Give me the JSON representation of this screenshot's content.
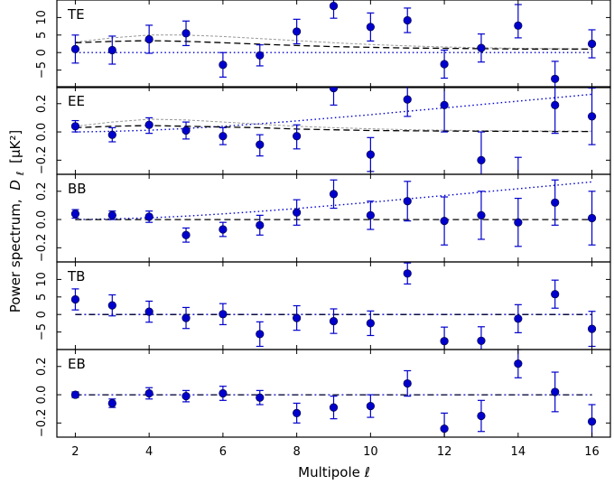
{
  "chart_data": {
    "type": "scatter",
    "xlabel": "Multipole ℓ",
    "ylabel_prefix": "Power spectrum,",
    "ylabel_symbol": "D",
    "ylabel_sub": "ℓ",
    "ylabel_unit": "[μK²]",
    "xlim": [
      1.5,
      16.5
    ],
    "xticks": [
      2,
      4,
      6,
      8,
      10,
      12,
      14,
      16
    ],
    "x": [
      2,
      3,
      4,
      5,
      6,
      7,
      8,
      9,
      10,
      11,
      12,
      13,
      14,
      15,
      16
    ],
    "marker_color": "#0000cc",
    "panels": [
      {
        "label": "TE",
        "ylim": [
          -10,
          15
        ],
        "yticks": [
          -5,
          0,
          5,
          10
        ],
        "ytick_labels": [
          "−5",
          "0",
          "5",
          "10"
        ],
        "values": [
          1.0,
          0.7,
          3.8,
          5.5,
          -3.5,
          -0.8,
          6.0,
          13.3,
          7.3,
          9.2,
          -3.3,
          1.3,
          7.7,
          -7.5,
          2.5
        ],
        "err_low": [
          4,
          4,
          4,
          3.5,
          3.5,
          3,
          3.5,
          3.5,
          4,
          3.5,
          4,
          4,
          3.5,
          4,
          4
        ],
        "err_high": [
          4,
          4,
          4,
          3.5,
          3.5,
          3,
          3.5,
          3.5,
          4,
          3.5,
          4,
          4,
          6,
          5,
          4
        ],
        "model_dashed": [
          2.8,
          3.2,
          3.4,
          3.2,
          2.8,
          2.4,
          2.0,
          1.7,
          1.5,
          1.3,
          1.2,
          1.1,
          1.0,
          1.0,
          1.0
        ],
        "model_dotted": [
          0.0,
          0.0,
          0.0,
          0.0,
          0.0,
          0.0,
          0.0,
          0.0,
          0.0,
          0.0,
          0.0,
          0.0,
          0.0,
          0.0,
          0.0
        ],
        "model_gray": [
          3.0,
          4.2,
          5.0,
          5.0,
          4.6,
          4.0,
          3.4,
          2.8,
          2.3,
          1.9,
          1.6,
          1.4,
          1.2,
          1.1,
          1.0
        ]
      },
      {
        "label": "EE",
        "ylim": [
          -0.3,
          0.32
        ],
        "yticks": [
          -0.2,
          0.0,
          0.2
        ],
        "ytick_labels": [
          "−0.2",
          "0.0",
          "0.2"
        ],
        "values": [
          0.04,
          -0.02,
          0.05,
          0.01,
          -0.03,
          -0.09,
          -0.03,
          0.31,
          -0.16,
          0.23,
          0.19,
          -0.2,
          -0.36,
          0.19,
          0.11
        ],
        "err_low": [
          0.04,
          0.05,
          0.06,
          0.06,
          0.06,
          0.08,
          0.09,
          0.12,
          0.12,
          0.12,
          0.19,
          0.2,
          0.18,
          0.2,
          0.2
        ],
        "err_high": [
          0.04,
          0.05,
          0.05,
          0.06,
          0.06,
          0.07,
          0.08,
          0.12,
          0.12,
          0.12,
          0.19,
          0.2,
          0.18,
          0.2,
          0.2
        ],
        "model_dashed": [
          0.03,
          0.04,
          0.045,
          0.04,
          0.035,
          0.03,
          0.02,
          0.015,
          0.01,
          0.008,
          0.006,
          0.005,
          0.004,
          0.003,
          0.003
        ],
        "model_dotted": [
          0.0,
          0.004,
          0.012,
          0.024,
          0.04,
          0.058,
          0.078,
          0.1,
          0.122,
          0.146,
          0.17,
          0.194,
          0.218,
          0.242,
          0.266
        ],
        "model_gray": [
          0.04,
          0.07,
          0.09,
          0.085,
          0.07,
          0.055,
          0.04,
          0.03,
          0.022,
          0.016,
          0.012,
          0.009,
          0.007,
          0.006,
          0.005
        ]
      },
      {
        "label": "BB",
        "ylim": [
          -0.3,
          0.32
        ],
        "yticks": [
          -0.2,
          0.0,
          0.2
        ],
        "ytick_labels": [
          "−0.2",
          "0.0",
          "0.2"
        ],
        "values": [
          0.04,
          0.03,
          0.02,
          -0.11,
          -0.07,
          -0.04,
          0.05,
          0.18,
          0.03,
          0.13,
          -0.01,
          0.03,
          -0.02,
          0.12,
          0.01
        ],
        "err_low": [
          0.03,
          0.03,
          0.04,
          0.05,
          0.05,
          0.07,
          0.09,
          0.1,
          0.1,
          0.14,
          0.17,
          0.17,
          0.17,
          0.16,
          0.19
        ],
        "err_high": [
          0.03,
          0.03,
          0.04,
          0.05,
          0.05,
          0.07,
          0.09,
          0.1,
          0.1,
          0.14,
          0.17,
          0.17,
          0.17,
          0.16,
          0.19
        ],
        "model_dashed": [
          0.0,
          0.0,
          0.0,
          0.0,
          0.0,
          0.0,
          0.0,
          0.0,
          0.0,
          0.0,
          0.0,
          0.0,
          0.0,
          0.0,
          0.0
        ],
        "model_dotted": [
          0.0,
          0.004,
          0.012,
          0.024,
          0.04,
          0.058,
          0.078,
          0.1,
          0.122,
          0.146,
          0.17,
          0.194,
          0.218,
          0.242,
          0.266
        ]
      },
      {
        "label": "TB",
        "ylim": [
          -10,
          15
        ],
        "yticks": [
          -5,
          0,
          5,
          10
        ],
        "ytick_labels": [
          "−5",
          "0",
          "5",
          "10"
        ],
        "values": [
          4.3,
          2.6,
          0.8,
          -1.0,
          0.1,
          -5.6,
          -1.0,
          -1.9,
          -2.5,
          11.7,
          -7.6,
          -7.5,
          -1.2,
          5.8,
          -4.1
        ],
        "err_low": [
          3,
          3,
          3,
          3,
          3,
          3.5,
          3.5,
          3.5,
          3.5,
          3,
          4,
          4,
          4,
          4,
          5
        ],
        "err_high": [
          3,
          3,
          3,
          3,
          3,
          3.5,
          3.5,
          3.5,
          3.5,
          3,
          4,
          4,
          4,
          4,
          5
        ],
        "model_dashdot": [
          0.0,
          0.0,
          0.0,
          0.0,
          0.0,
          0.0,
          0.0,
          0.0,
          0.0,
          0.0,
          0.0,
          0.0,
          0.0,
          0.0,
          0.0
        ]
      },
      {
        "label": "EB",
        "ylim": [
          -0.3,
          0.32
        ],
        "yticks": [
          -0.2,
          0.0,
          0.2
        ],
        "ytick_labels": [
          "−0.2",
          "0.0",
          "0.2"
        ],
        "values": [
          0.0,
          -0.06,
          0.01,
          -0.01,
          0.01,
          -0.02,
          -0.13,
          -0.09,
          -0.08,
          0.08,
          -0.24,
          -0.15,
          0.22,
          0.02,
          -0.19
        ],
        "err_low": [
          0.02,
          0.03,
          0.04,
          0.04,
          0.05,
          0.05,
          0.07,
          0.08,
          0.08,
          0.09,
          0.11,
          0.11,
          0.1,
          0.14,
          0.12
        ],
        "err_high": [
          0.02,
          0.03,
          0.04,
          0.04,
          0.05,
          0.05,
          0.07,
          0.08,
          0.08,
          0.09,
          0.11,
          0.11,
          0.1,
          0.14,
          0.12
        ],
        "model_dashdot": [
          0.0,
          0.0,
          0.0,
          0.0,
          0.0,
          0.0,
          0.0,
          0.0,
          0.0,
          0.0,
          0.0,
          0.0,
          0.0,
          0.0,
          0.0
        ]
      }
    ]
  }
}
